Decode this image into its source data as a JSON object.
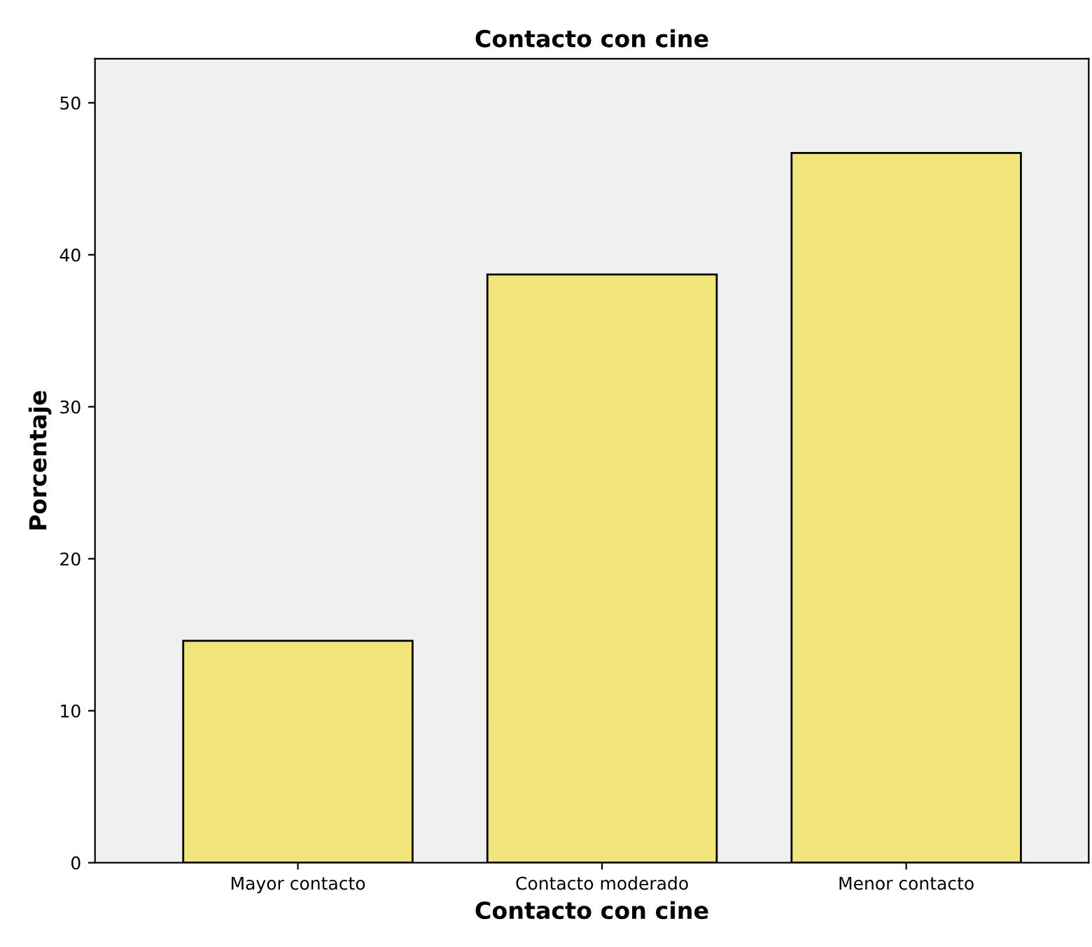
{
  "chart_data": {
    "type": "bar",
    "title": "Contacto con cine",
    "xlabel": "Contacto con cine",
    "ylabel": "Porcentaje",
    "categories": [
      "Mayor contacto",
      "Contacto moderado",
      "Menor contacto"
    ],
    "values": [
      14.6,
      38.7,
      46.7
    ],
    "color": "#f0e47a",
    "ylim": [
      0,
      52.9
    ],
    "yticks": [
      0,
      10,
      20,
      30,
      40,
      50
    ],
    "grid": false
  }
}
